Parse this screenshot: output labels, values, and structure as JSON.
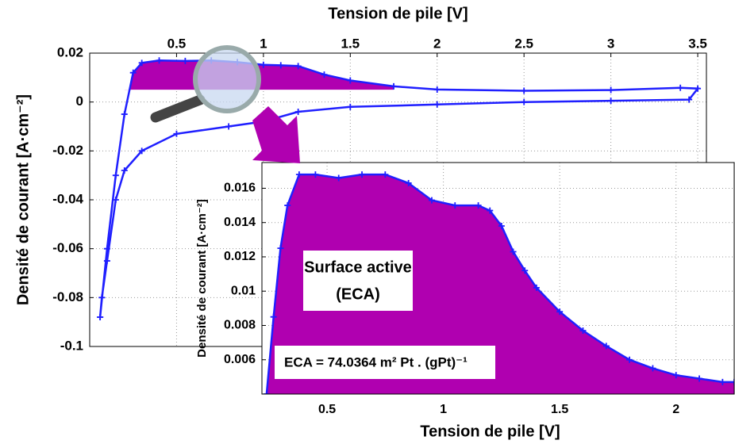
{
  "chart_data": [
    {
      "type": "line",
      "xlabel": "Tension de pile [V]",
      "ylabel": "Densité de courant [A·cm⁻²]",
      "xaxis_position": "top",
      "grid": true,
      "xlim": [
        0,
        3.55
      ],
      "ylim": [
        -0.1,
        0.02
      ],
      "xticks": [
        0.5,
        1,
        1.5,
        2,
        2.5,
        3,
        3.5
      ],
      "yticks": [
        0.02,
        0,
        -0.02,
        -0.04,
        -0.06,
        -0.08,
        -0.1
      ],
      "x": [
        0.06,
        0.1,
        0.15,
        0.2,
        0.25,
        0.3,
        0.4,
        0.55,
        0.7,
        0.85,
        1.0,
        1.1,
        1.2,
        1.35,
        1.5,
        1.75,
        2.0,
        2.5,
        3.0,
        3.4,
        3.5,
        3.45,
        3.0,
        2.5,
        2.0,
        1.5,
        1.2,
        1.0,
        0.8,
        0.5,
        0.3,
        0.2,
        0.15,
        0.1,
        0.07,
        0.06
      ],
      "series": [
        {
          "color": "#1f1fff",
          "values": [
            -0.088,
            -0.06,
            -0.03,
            -0.005,
            0.012,
            0.016,
            0.017,
            0.0168,
            0.017,
            0.0163,
            0.0152,
            0.015,
            0.0147,
            0.0112,
            0.0088,
            0.0064,
            0.0051,
            0.0046,
            0.0049,
            0.0058,
            0.0055,
            0.001,
            0.0005,
            0,
            -0.001,
            -0.002,
            -0.004,
            -0.008,
            -0.01,
            -0.013,
            -0.02,
            -0.028,
            -0.04,
            -0.065,
            -0.08,
            -0.088
          ]
        }
      ],
      "fill": {
        "color": "#b000b0",
        "baseline": 0.005,
        "xlim": [
          0.2,
          1.75
        ]
      }
    },
    {
      "type": "line",
      "xlabel": "Tension de pile [V]",
      "ylabel": "Densité de courant [A·cm⁻²]",
      "xaxis_position": "bottom",
      "grid": true,
      "xlim": [
        0.22,
        2.25
      ],
      "ylim": [
        0.004,
        0.0175
      ],
      "xticks": [
        0.5,
        1,
        1.5,
        2
      ],
      "yticks": [
        0.006,
        0.008,
        0.01,
        0.012,
        0.014,
        0.016
      ],
      "x": [
        0.24,
        0.27,
        0.3,
        0.33,
        0.38,
        0.45,
        0.55,
        0.65,
        0.75,
        0.85,
        0.95,
        1.05,
        1.15,
        1.2,
        1.25,
        1.3,
        1.35,
        1.4,
        1.5,
        1.6,
        1.7,
        1.8,
        1.9,
        2.0,
        2.1,
        2.2,
        2.25
      ],
      "series": [
        {
          "color": "#1f1fff",
          "values": [
            0.004,
            0.0085,
            0.0125,
            0.015,
            0.0168,
            0.0168,
            0.0166,
            0.0168,
            0.0168,
            0.0163,
            0.0153,
            0.015,
            0.015,
            0.0147,
            0.0138,
            0.0123,
            0.0112,
            0.0102,
            0.0088,
            0.0077,
            0.0068,
            0.006,
            0.0055,
            0.0051,
            0.0049,
            0.0047,
            0.0047
          ]
        }
      ],
      "fill": {
        "color": "#b000b0",
        "baseline": 0.004
      },
      "annotations": [
        "Surface active",
        "(ECA)",
        "ECA = 74.0364 m² Pt . (gPt)⁻¹"
      ]
    }
  ]
}
